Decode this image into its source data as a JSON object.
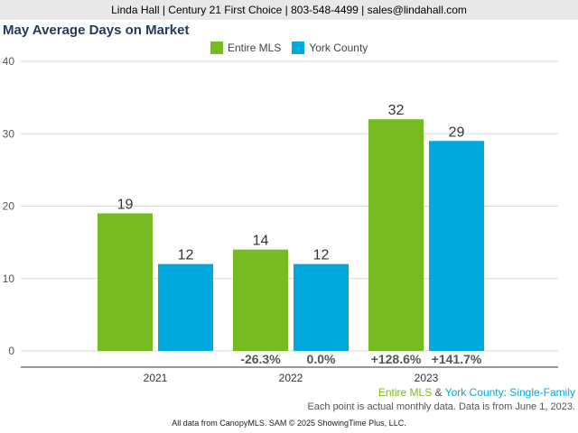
{
  "header": {
    "contact": "Linda Hall | Century 21 First Choice | 803-548-4499 | sales@lindahall.com"
  },
  "colors": {
    "entire_mls": "#77bb22",
    "york_county": "#00a8e0"
  },
  "chart_data": {
    "type": "bar",
    "title": "May Average Days on Market",
    "categories": [
      "2021",
      "2022",
      "2023"
    ],
    "series": [
      {
        "name": "Entire MLS",
        "values": [
          19,
          14,
          32
        ],
        "change_labels": [
          "",
          "-26.3%",
          "+128.6%"
        ]
      },
      {
        "name": "York County",
        "values": [
          12,
          12,
          29
        ],
        "change_labels": [
          "",
          "0.0%",
          "+141.7%"
        ]
      }
    ],
    "ylim": [
      0,
      40
    ],
    "yticks": [
      0,
      10,
      20,
      30,
      40
    ],
    "grid": true,
    "legend": "top-center"
  },
  "footer": {
    "series_entire": "Entire MLS",
    "series_amp": " & ",
    "series_york": "York County",
    "series_suffix": ": Single-Family",
    "note": "Each point is actual monthly data. Data is from June 1, 2023.",
    "source": "All data from CanopyMLS. SAM © 2025 ShowingTime Plus, LLC."
  }
}
